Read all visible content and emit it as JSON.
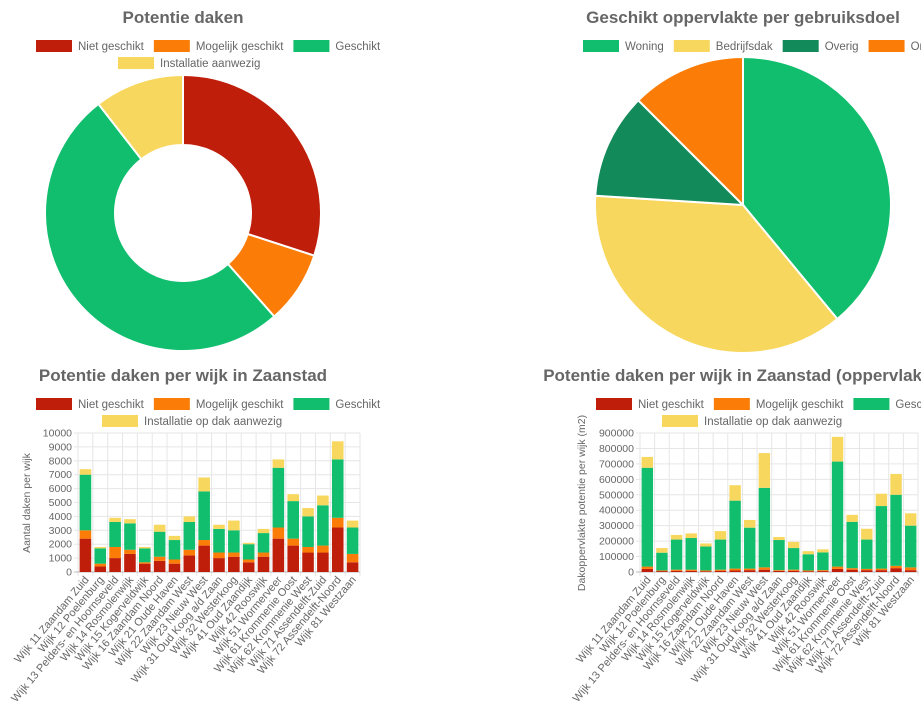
{
  "chart_data": [
    {
      "id": "donut",
      "type": "pie",
      "title": "Potentie daken",
      "legend": [
        "Niet geschikt",
        "Mogelijk geschikt",
        "Geschikt",
        "Installatie aanwezig"
      ],
      "colors": [
        "#bf1e0b",
        "#fb7d07",
        "#10be6e",
        "#f8d75e"
      ],
      "values": [
        30,
        8.5,
        51,
        10.5
      ],
      "donut": true
    },
    {
      "id": "pie",
      "type": "pie",
      "title": "Geschikt oppervlakte per gebruiksdoel",
      "legend": [
        "Woning",
        "Bedrijfsdak",
        "Overig",
        "Onbekend"
      ],
      "colors": [
        "#10be6e",
        "#f8d75e",
        "#138a5a",
        "#fb7d07"
      ],
      "values": [
        39,
        37,
        11.5,
        12.5
      ],
      "donut": false
    },
    {
      "id": "bar1",
      "type": "bar",
      "title": "Potentie daken per wijk in Zaanstad",
      "ylabel": "Aantal daken per wijk",
      "ylim": [
        0,
        10000
      ],
      "yticks": [
        "0",
        "1000",
        "2000",
        "3000",
        "4000",
        "5000",
        "6000",
        "7000",
        "8000",
        "9000",
        "10000"
      ],
      "legend": [
        "Niet geschikt",
        "Mogelijk geschikt",
        "Geschikt",
        "Installatie op dak aanwezig"
      ],
      "colors": [
        "#bf1e0b",
        "#fb7d07",
        "#10be6e",
        "#f8d75e"
      ],
      "categories": [
        "Wijk 11 Zaandam Zuid",
        "Wijk 12 Poelenburg",
        "Wijk 13 Pelders- en Hoornseveld",
        "Wijk 14 Rosmolenwijk",
        "Wijk 15 Kogerveldwijk",
        "Wijk 16 Zaandam Noord",
        "Wijk 21 Oude Haven",
        "Wijk 22 Zaandam West",
        "Wijk 23 Nieuw West",
        "Wijk 31 Oud Koog a/d Zaan",
        "Wijk 32 Westerkoog",
        "Wijk 41 Oud Zaandijk",
        "Wijk 42 Rooswijk",
        "Wijk 51 Wormerveer",
        "Wijk 61 Krommenie Oost",
        "Wijk 62 Krommenie West",
        "Wijk 71 Assendelft-Zuid",
        "Wijk 72 Assendelft-Noord",
        "Wijk 81 Westzaan"
      ],
      "series": [
        {
          "name": "Niet geschikt",
          "values": [
            2400,
            400,
            1000,
            1300,
            600,
            800,
            600,
            1200,
            1900,
            1000,
            1100,
            700,
            1100,
            2400,
            1900,
            1400,
            1400,
            3200,
            700
          ]
        },
        {
          "name": "Mogelijk geschikt",
          "values": [
            600,
            200,
            800,
            300,
            100,
            300,
            300,
            400,
            400,
            400,
            300,
            200,
            300,
            800,
            500,
            400,
            500,
            700,
            600
          ]
        },
        {
          "name": "Geschikt",
          "values": [
            4000,
            1100,
            1800,
            1900,
            1000,
            1800,
            1400,
            2000,
            3500,
            1700,
            1600,
            1100,
            1400,
            4300,
            2700,
            2200,
            2900,
            4200,
            1900
          ]
        },
        {
          "name": "Installatie op dak aanwezig",
          "values": [
            400,
            100,
            300,
            300,
            100,
            500,
            300,
            400,
            1000,
            300,
            700,
            100,
            300,
            600,
            500,
            600,
            700,
            1300,
            500
          ]
        }
      ]
    },
    {
      "id": "bar2",
      "type": "bar",
      "title": "Potentie daken per wijk in Zaanstad (oppervlakte)",
      "ylabel": "Dakoppervlakte potentie per wijk (m2)",
      "ylim": [
        0,
        900000
      ],
      "yticks": [
        "0",
        "100000",
        "200000",
        "300000",
        "400000",
        "500000",
        "600000",
        "700000",
        "800000",
        "900000"
      ],
      "legend": [
        "Niet geschikt",
        "Mogelijk geschikt",
        "Geschikt",
        "Installatie op dak aanwezig"
      ],
      "colors": [
        "#bf1e0b",
        "#fb7d07",
        "#10be6e",
        "#f8d75e"
      ],
      "categories": [
        "Wijk 11 Zaandam Zuid",
        "Wijk 12 Poelenburg",
        "Wijk 13 Pelders- en Hoornseveld",
        "Wijk 14 Rosmolenwijk",
        "Wijk 15 Kogerveldwijk",
        "Wijk 16 Zaandam Noord",
        "Wijk 21 Oude Haven",
        "Wijk 22 Zaandam West",
        "Wijk 23 Nieuw West",
        "Wijk 31 Oud Koog a/d Zaan",
        "Wijk 32 Westerkoog",
        "Wijk 41 Oud Zaandijk",
        "Wijk 42 Rooswijk",
        "Wijk 51 Wormerveer",
        "Wijk 61 Krommenie Oost",
        "Wijk 62 Krommenie West",
        "Wijk 71 Assendelft-Zuid",
        "Wijk 72 Assendelft-Noord",
        "Wijk 81 Westzaan"
      ],
      "series": [
        {
          "name": "Niet geschikt",
          "values": [
            20000,
            6000,
            8000,
            8000,
            5000,
            8000,
            10000,
            12000,
            15000,
            7000,
            8000,
            5000,
            6000,
            20000,
            15000,
            12000,
            12000,
            25000,
            12000
          ]
        },
        {
          "name": "Mogelijk geschikt",
          "values": [
            15000,
            4000,
            7000,
            7000,
            5000,
            7000,
            12000,
            10000,
            15000,
            5000,
            7000,
            5000,
            6000,
            15000,
            10000,
            8000,
            10000,
            15000,
            18000
          ]
        },
        {
          "name": "Geschikt",
          "values": [
            640000,
            115000,
            195000,
            205000,
            155000,
            195000,
            440000,
            265000,
            515000,
            195000,
            140000,
            105000,
            115000,
            680000,
            300000,
            190000,
            405000,
            460000,
            270000
          ]
        },
        {
          "name": "Installatie op dak aanwezig",
          "values": [
            70000,
            30000,
            30000,
            30000,
            20000,
            55000,
            100000,
            50000,
            225000,
            20000,
            40000,
            20000,
            20000,
            160000,
            45000,
            70000,
            80000,
            135000,
            80000
          ]
        }
      ]
    }
  ]
}
